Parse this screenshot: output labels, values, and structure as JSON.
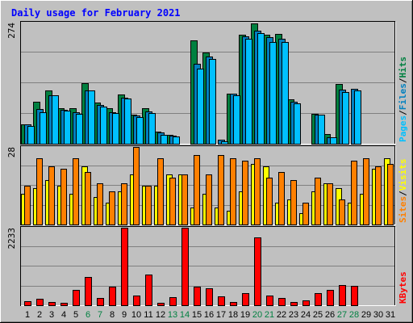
{
  "chart_data": {
    "type": "bar",
    "title": "Daily usage for February 2021",
    "days": [
      "1",
      "2",
      "3",
      "4",
      "5",
      "6",
      "7",
      "8",
      "9",
      "10",
      "11",
      "12",
      "13",
      "14",
      "15",
      "16",
      "17",
      "18",
      "19",
      "20",
      "21",
      "22",
      "23",
      "24",
      "25",
      "26",
      "27",
      "28",
      "29",
      "30",
      "31"
    ],
    "weekend_days": [
      "6",
      "7",
      "13",
      "14",
      "20",
      "21",
      "27",
      "28"
    ],
    "colors": {
      "hits": "#008040",
      "files": "#0080C0",
      "pages": "#00C0FF",
      "visits": "#FFFF00",
      "sites": "#FF8000",
      "kbytes": "#FF0000",
      "title": "#0000FF",
      "weekend_label": "#008040",
      "weekday_label": "#000000",
      "panel_bg": "#C0C0C0",
      "grid": "#808080"
    },
    "panels": [
      {
        "name": "hits-files-pages",
        "ymax_label": "274",
        "ymax": 274,
        "legend": [
          "Pages",
          "/",
          "Files",
          "/",
          "Hits"
        ],
        "legend_colors": [
          "#00C0FF",
          "#000000",
          "#0080C0",
          "#000000",
          "#008040"
        ],
        "series": [
          {
            "name": "Hits",
            "values": [
              43,
              95,
              120,
              81,
              81,
              137,
              93,
              80,
              111,
              66,
              80,
              28,
              20,
              0,
              233,
              206,
              0,
              113,
              246,
              272,
              247,
              248,
              100,
              0,
              68,
              22,
              136,
              0,
              0,
              0,
              0
            ]
          },
          {
            "name": "Files",
            "values": [
              43,
              78,
              110,
              76,
              71,
              121,
              88,
              72,
              105,
              64,
              73,
              25,
              18,
              0,
              180,
              198,
              9,
              113,
              243,
              255,
              242,
              237,
              95,
              0,
              65,
              15,
              123,
              124,
              0,
              0,
              0
            ]
          },
          {
            "name": "Pages",
            "values": [
              41,
              72,
              110,
              74,
              68,
              121,
              84,
              70,
              103,
              61,
              69,
              21,
              16,
              0,
              170,
              191,
              6,
              110,
              238,
              250,
              231,
              231,
              92,
              0,
              66,
              14,
              117,
              121,
              0,
              0,
              0
            ]
          }
        ]
      },
      {
        "name": "visits-sites",
        "ymax_label": "28",
        "ymax": 28,
        "legend": [
          "Sites",
          "/",
          "Visits"
        ],
        "legend_colors": [
          "#FF8000",
          "#000000",
          "#FFFF00"
        ],
        "series": [
          {
            "name": "Visits",
            "values": [
              11,
              13,
              16,
              14,
              11,
              21,
              10,
              8,
              12,
              18,
              14,
              14,
              18,
              18,
              6,
              11,
              6,
              5,
              12,
              22,
              21,
              8,
              9,
              4,
              12,
              15,
              13,
              8,
              11,
              20,
              24
            ]
          },
          {
            "name": "Sites",
            "values": [
              14,
              24,
              21,
              20,
              24,
              19,
              15,
              12,
              15,
              28,
              14,
              24,
              17,
              18,
              25,
              18,
              25,
              24,
              23,
              24,
              17,
              19,
              16,
              8,
              17,
              15,
              9,
              23,
              24,
              21,
              22
            ]
          }
        ]
      },
      {
        "name": "kbytes",
        "ymax_label": "2233",
        "ymax": 2233,
        "legend": [
          "KBytes"
        ],
        "legend_colors": [
          "#FF0000"
        ],
        "series": [
          {
            "name": "KBytes",
            "values": [
              120,
              196,
              97,
              67,
              451,
              825,
              200,
              528,
              2233,
              284,
              884,
              61,
              231,
              2233,
              538,
              497,
              265,
              101,
              360,
              1960,
              290,
              207,
              97,
              135,
              339,
              446,
              593,
              555,
              0,
              0,
              0
            ]
          }
        ]
      }
    ]
  }
}
